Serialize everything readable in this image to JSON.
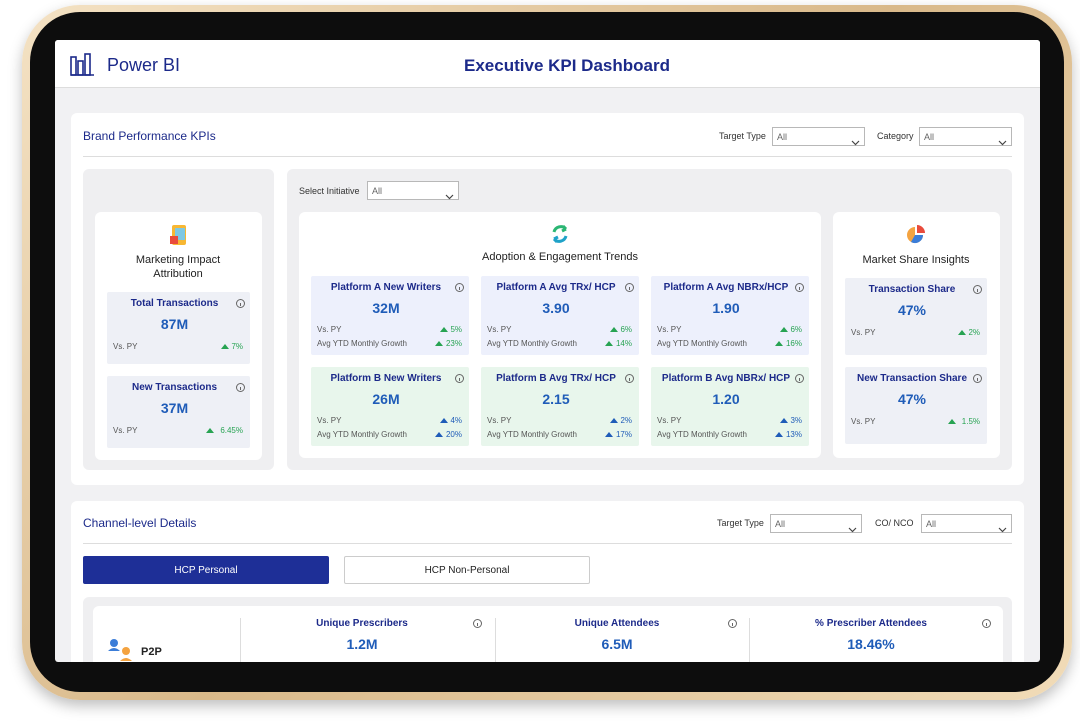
{
  "header": {
    "app_name": "Power BI",
    "title": "Executive KPI Dashboard"
  },
  "brand_section": {
    "title": "Brand Performance KPIs",
    "filters": [
      {
        "label": "Target Type",
        "value": "All"
      },
      {
        "label": "Category",
        "value": "All"
      }
    ],
    "marketing_impact": {
      "title": "Marketing Impact Attribution",
      "cards": [
        {
          "title": "Total Transactions",
          "value": "87M",
          "rows": [
            {
              "label": "Vs. PY",
              "change": "7%"
            }
          ]
        },
        {
          "title": "New Transactions",
          "value": "37M",
          "rows": [
            {
              "label": "Vs. PY",
              "change": "6.45%"
            }
          ]
        }
      ]
    },
    "initiative_filter": {
      "label": "Select Initiative",
      "value": "All"
    },
    "adoption": {
      "title": "Adoption & Engagement Trends",
      "cards": [
        {
          "title": "Platform A New Writers",
          "value": "32M",
          "rows": [
            {
              "label": "Vs. PY",
              "change": "5%"
            },
            {
              "label": "Avg YTD Monthly Growth",
              "change": "23%"
            }
          ]
        },
        {
          "title": "Platform A Avg TRx/ HCP",
          "value": "3.90",
          "rows": [
            {
              "label": "Vs. PY",
              "change": "6%"
            },
            {
              "label": "Avg YTD Monthly Growth",
              "change": "14%"
            }
          ]
        },
        {
          "title": "Platform A Avg NBRx/HCP",
          "value": "1.90",
          "rows": [
            {
              "label": "Vs. PY",
              "change": "6%"
            },
            {
              "label": "Avg YTD Monthly Growth",
              "change": "16%"
            }
          ]
        },
        {
          "title": "Platform B New Writers",
          "value": "26M",
          "rows": [
            {
              "label": "Vs. PY",
              "change": "4%"
            },
            {
              "label": "Avg YTD Monthly Growth",
              "change": "20%"
            }
          ]
        },
        {
          "title": "Platform B Avg TRx/ HCP",
          "value": "2.15",
          "rows": [
            {
              "label": "Vs. PY",
              "change": "2%"
            },
            {
              "label": "Avg YTD Monthly Growth",
              "change": "17%"
            }
          ]
        },
        {
          "title": "Platform B Avg NBRx/ HCP",
          "value": "1.20",
          "rows": [
            {
              "label": "Vs. PY",
              "change": "3%"
            },
            {
              "label": "Avg YTD Monthly Growth",
              "change": "13%"
            }
          ]
        }
      ]
    },
    "market_share": {
      "title": "Market Share Insights",
      "cards": [
        {
          "title": "Transaction Share",
          "value": "47%",
          "rows": [
            {
              "label": "Vs. PY",
              "change": "2%"
            }
          ]
        },
        {
          "title": "New Transaction Share",
          "value": "47%",
          "rows": [
            {
              "label": "Vs. PY",
              "change": "1.5%"
            }
          ]
        }
      ]
    }
  },
  "channel_section": {
    "title": "Channel-level Details",
    "filters": [
      {
        "label": "Target Type",
        "value": "All"
      },
      {
        "label": "CO/ NCO",
        "value": "All"
      }
    ],
    "tabs": [
      "HCP Personal",
      "HCP Non-Personal"
    ],
    "channel": {
      "label": "P2P",
      "metrics": [
        {
          "title": "Unique Prescribers",
          "value": "1.2M"
        },
        {
          "title": "Unique Attendees",
          "value": "6.5M"
        },
        {
          "title": "% Prescriber Attendees",
          "value": "18.46%"
        }
      ]
    }
  }
}
